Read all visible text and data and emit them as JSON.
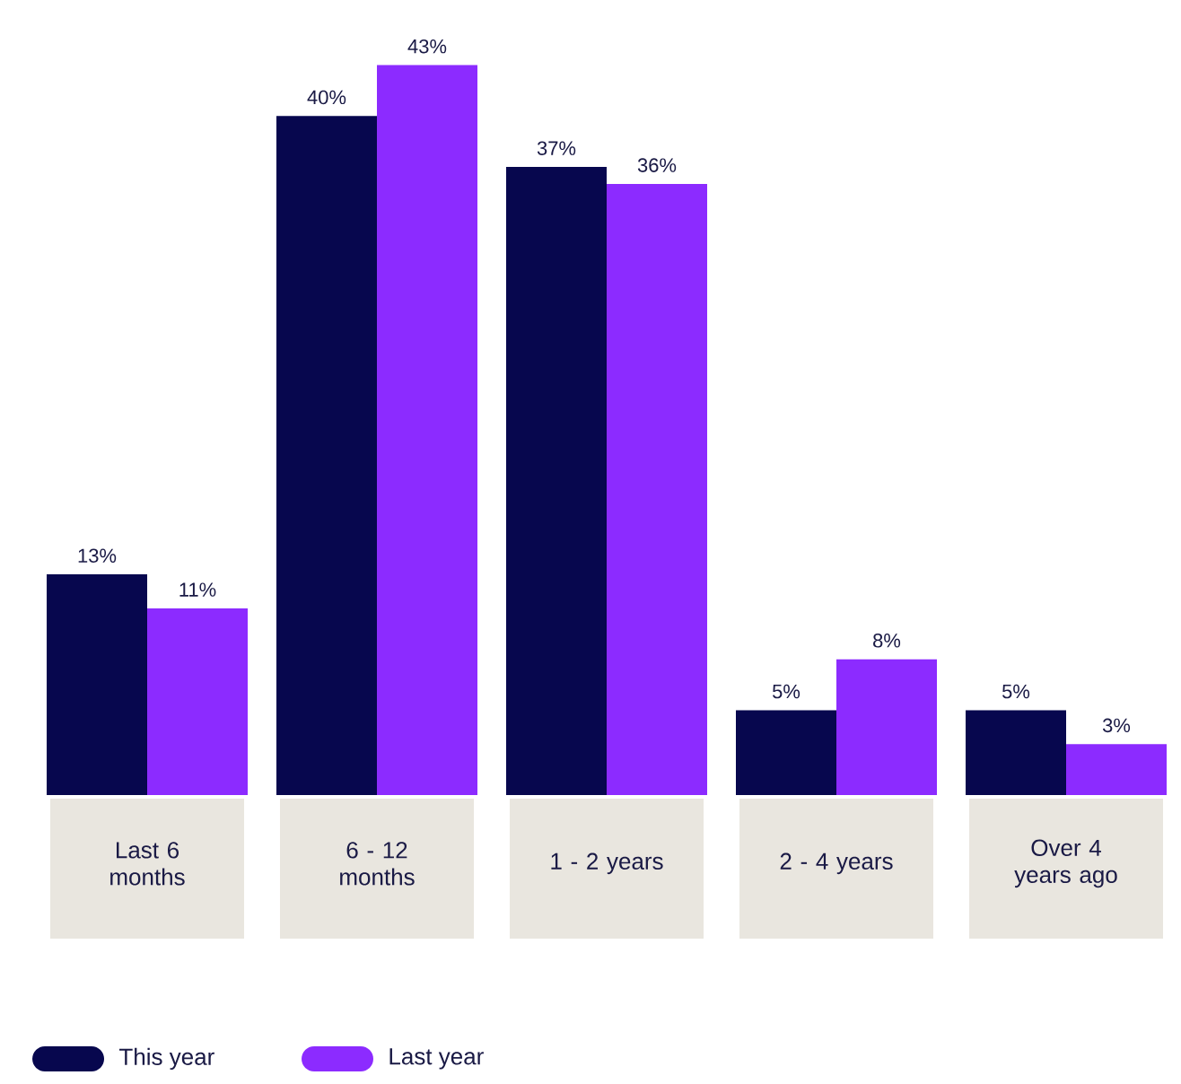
{
  "chart_data": {
    "type": "bar",
    "categories": [
      "Last 6 months",
      "6 - 12 months",
      "1 - 2 years",
      "2 - 4 years",
      "Over 4 years ago"
    ],
    "series": [
      {
        "name": "This year",
        "color": "#07074e",
        "values": [
          13,
          40,
          37,
          5,
          5
        ],
        "value_labels": [
          "13%",
          "40%",
          "37%",
          "5%",
          "5%"
        ]
      },
      {
        "name": "Last year",
        "color": "#8c2bff",
        "values": [
          11,
          43,
          36,
          8,
          3
        ],
        "value_labels": [
          "11%",
          "43%",
          "36%",
          "8%",
          "3%"
        ]
      }
    ],
    "legend": "bottom"
  }
}
